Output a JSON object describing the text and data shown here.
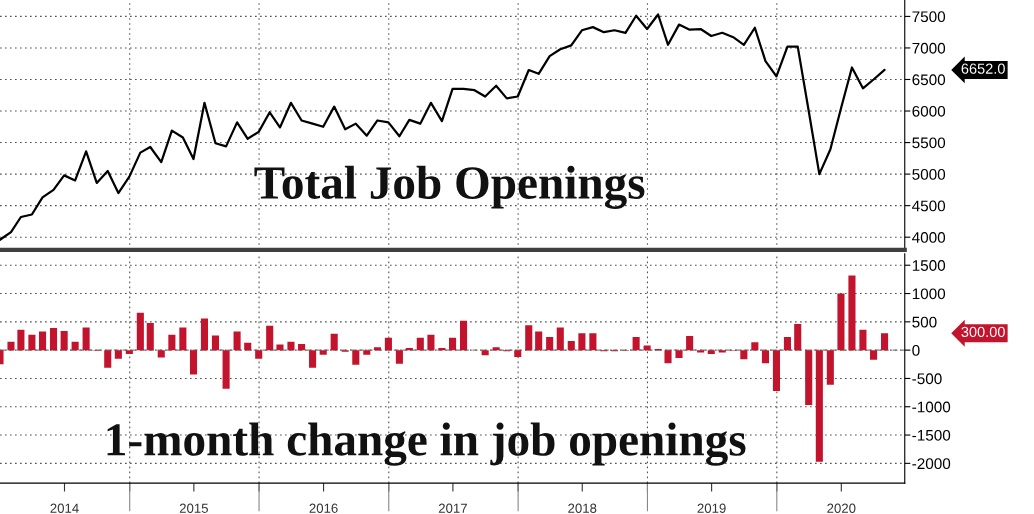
{
  "chart_data": [
    {
      "type": "line",
      "x": [
        "2013-12-31",
        "2014-01-31",
        "2014-02-28",
        "2014-03-31",
        "2014-04-30",
        "2014-05-31",
        "2014-06-30",
        "2014-07-31",
        "2014-08-31",
        "2014-09-30",
        "2014-10-31",
        "2014-11-30",
        "2014-12-31",
        "2015-01-31",
        "2015-02-28",
        "2015-03-31",
        "2015-04-30",
        "2015-05-31",
        "2015-06-30",
        "2015-07-31",
        "2015-08-31",
        "2015-09-30",
        "2015-10-31",
        "2015-11-30",
        "2015-12-31",
        "2016-01-31",
        "2016-02-29",
        "2016-03-31",
        "2016-04-30",
        "2016-05-31",
        "2016-06-30",
        "2016-07-31",
        "2016-08-31",
        "2016-09-30",
        "2016-10-31",
        "2016-11-30",
        "2016-12-31",
        "2017-01-31",
        "2017-02-28",
        "2017-03-31",
        "2017-04-30",
        "2017-05-31",
        "2017-06-30",
        "2017-07-31",
        "2017-08-31",
        "2017-09-30",
        "2017-10-31",
        "2017-11-30",
        "2017-12-31",
        "2018-01-31",
        "2018-02-28",
        "2018-03-31",
        "2018-04-30",
        "2018-05-31",
        "2018-06-30",
        "2018-07-31",
        "2018-08-31",
        "2018-09-30",
        "2018-10-31",
        "2018-11-30",
        "2018-12-31",
        "2019-01-31",
        "2019-02-28",
        "2019-03-31",
        "2019-04-30",
        "2019-05-31",
        "2019-06-30",
        "2019-07-31",
        "2019-08-31",
        "2019-09-30",
        "2019-10-31",
        "2019-11-30",
        "2019-12-31",
        "2020-01-31",
        "2020-02-29",
        "2020-03-31",
        "2020-04-30",
        "2020-05-31",
        "2020-06-30",
        "2020-07-31",
        "2020-08-31",
        "2020-09-30",
        "2020-10-31"
      ],
      "series": [
        {
          "color": "#000000",
          "values": [
            3960,
            4080,
            4320,
            4360,
            4630,
            4750,
            4980,
            4900,
            5360,
            4860,
            5050,
            4700,
            4960,
            5340,
            5430,
            5190,
            5690,
            5580,
            5240,
            6130,
            5490,
            5440,
            5820,
            5560,
            5670,
            5980,
            5740,
            6130,
            5850,
            5800,
            5750,
            6070,
            5710,
            5800,
            5610,
            5850,
            5820,
            5600,
            5860,
            5800,
            6130,
            5840,
            6350,
            6350,
            6330,
            6230,
            6400,
            6200,
            6230,
            6650,
            6590,
            6870,
            6980,
            7040,
            7280,
            7330,
            7250,
            7280,
            7240,
            7510,
            7300,
            7530,
            7050,
            7370,
            7290,
            7300,
            7190,
            7240,
            7170,
            7050,
            7320,
            6790,
            6550,
            7020,
            7020,
            6000,
            5000,
            5390,
            6040,
            6690,
            6360,
            6500,
            6652
          ]
        }
      ],
      "xlim": [
        "2013-12-31",
        "2020-12-27"
      ],
      "xticks": [
        {
          "value": "2015-01-01",
          "label": null
        },
        {
          "value": "2016-01-01",
          "label": null
        },
        {
          "value": "2017-01-01",
          "label": null
        },
        {
          "value": "2018-01-01",
          "label": null
        },
        {
          "value": "2019-01-01",
          "label": null
        },
        {
          "value": "2020-01-01",
          "label": null
        }
      ],
      "ylim": [
        3800,
        7760
      ],
      "yticks": [
        4000,
        4500,
        5000,
        5500,
        6000,
        6500,
        7000,
        7500
      ],
      "tick_labels": "y",
      "grid": true,
      "annotations": [
        "Total Job Openings",
        "6652.0"
      ]
    },
    {
      "type": "bar",
      "x": [
        "2013-12-31",
        "2014-01-31",
        "2014-02-28",
        "2014-03-31",
        "2014-04-30",
        "2014-05-31",
        "2014-06-30",
        "2014-07-31",
        "2014-08-31",
        "2014-09-30",
        "2014-10-31",
        "2014-11-30",
        "2014-12-31",
        "2015-01-31",
        "2015-02-28",
        "2015-03-31",
        "2015-04-30",
        "2015-05-31",
        "2015-06-30",
        "2015-07-31",
        "2015-08-31",
        "2015-09-30",
        "2015-10-31",
        "2015-11-30",
        "2015-12-31",
        "2016-01-31",
        "2016-02-29",
        "2016-03-31",
        "2016-04-30",
        "2016-05-31",
        "2016-06-30",
        "2016-07-31",
        "2016-08-31",
        "2016-09-30",
        "2016-10-31",
        "2016-11-30",
        "2016-12-31",
        "2017-01-31",
        "2017-02-28",
        "2017-03-31",
        "2017-04-30",
        "2017-05-31",
        "2017-06-30",
        "2017-07-31",
        "2017-08-31",
        "2017-09-30",
        "2017-10-31",
        "2017-11-30",
        "2017-12-31",
        "2018-01-31",
        "2018-02-28",
        "2018-03-31",
        "2018-04-30",
        "2018-05-31",
        "2018-06-30",
        "2018-07-31",
        "2018-08-31",
        "2018-09-30",
        "2018-10-31",
        "2018-11-30",
        "2018-12-31",
        "2019-01-31",
        "2019-02-28",
        "2019-03-31",
        "2019-04-30",
        "2019-05-31",
        "2019-06-30",
        "2019-07-31",
        "2019-08-31",
        "2019-09-30",
        "2019-10-31",
        "2019-11-30",
        "2019-12-31",
        "2020-01-31",
        "2020-02-29",
        "2020-03-31",
        "2020-04-30",
        "2020-05-31",
        "2020-06-30",
        "2020-07-31",
        "2020-08-31",
        "2020-09-30",
        "2020-10-31"
      ],
      "series": [
        {
          "color": "#c3142d",
          "values": [
            -250,
            150,
            360,
            270,
            330,
            390,
            340,
            150,
            400,
            -10,
            -310,
            -150,
            -70,
            660,
            480,
            -130,
            270,
            400,
            -430,
            560,
            260,
            -680,
            330,
            130,
            -150,
            430,
            100,
            150,
            110,
            -310,
            -80,
            290,
            -30,
            -260,
            -80,
            50,
            220,
            -240,
            40,
            220,
            270,
            40,
            220,
            520,
            0,
            -90,
            50,
            -20,
            -120,
            440,
            330,
            230,
            400,
            160,
            300,
            300,
            -20,
            -20,
            -10,
            230,
            80,
            20,
            -230,
            -140,
            250,
            -40,
            -70,
            -40,
            -10,
            -160,
            140,
            -230,
            -720,
            230,
            460,
            -970,
            -1970,
            -610,
            1000,
            1320,
            360,
            -170,
            300
          ]
        }
      ],
      "xlim": [
        "2013-12-31",
        "2020-12-27"
      ],
      "xticks": [
        {
          "value": "2014-07-01",
          "label": "2014"
        },
        {
          "value": "2015-01-01",
          "label": null
        },
        {
          "value": "2015-07-01",
          "label": "2015"
        },
        {
          "value": "2016-01-01",
          "label": null
        },
        {
          "value": "2016-07-01",
          "label": "2016"
        },
        {
          "value": "2017-01-01",
          "label": null
        },
        {
          "value": "2017-07-01",
          "label": "2017"
        },
        {
          "value": "2018-01-01",
          "label": null
        },
        {
          "value": "2018-07-01",
          "label": "2018"
        },
        {
          "value": "2019-01-01",
          "label": null
        },
        {
          "value": "2019-07-01",
          "label": "2019"
        },
        {
          "value": "2020-01-01",
          "label": null
        },
        {
          "value": "2020-07-01",
          "label": "2020"
        }
      ],
      "ylim": [
        -2350,
        1700
      ],
      "yticks": [
        -2000,
        -1500,
        -1000,
        -500,
        0,
        500,
        1000,
        1500
      ],
      "grid": true,
      "ref_lines": [
        {
          "axis": "y",
          "value": 0,
          "color": "#808080",
          "line_style": "dashed"
        }
      ],
      "annotations": [
        "1-month change in job openings",
        "300.00"
      ]
    }
  ]
}
